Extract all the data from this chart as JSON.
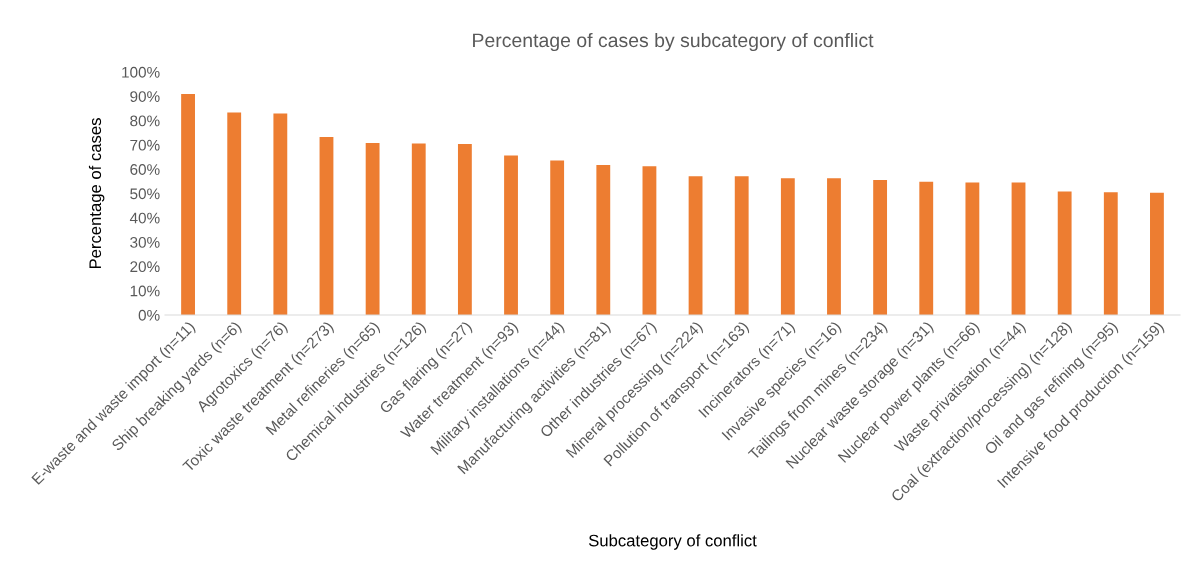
{
  "chart_data": {
    "type": "bar",
    "title": "Percentage of cases by subcategory of conflict",
    "xlabel": "Subcategory of conflict",
    "ylabel": "Percentage of cases",
    "categories": [
      "E-waste and waste import (n=11)",
      "Ship breaking yards (n=6)",
      "Agrotoxics (n=76)",
      "Toxic waste treatment (n=273)",
      "Metal refineries (n=65)",
      "Chemical industries (n=126)",
      "Gas flaring (n=27)",
      "Water treatment (n=93)",
      "Military installations (n=44)",
      "Manufacturing activities (n=81)",
      "Other industries (n=67)",
      "Mineral processing (n=224)",
      "Pollution of transport (n=163)",
      "Incinerators (n=71)",
      "Invasive species (n=16)",
      "Tailings from mines (n=234)",
      "Nuclear waste storage (n=31)",
      "Nuclear power plants (n=66)",
      "Waste privatisation (n=44)",
      "Coal (extraction/processing) (n=128)",
      "Oil and gas refining (n=95)",
      "Intensive food production (n=159)"
    ],
    "values": [
      90.9,
      83.3,
      82.9,
      73.3,
      70.8,
      70.6,
      70.4,
      65.6,
      63.6,
      61.7,
      61.2,
      57.1,
      57.1,
      56.3,
      56.3,
      55.6,
      54.8,
      54.5,
      54.5,
      50.8,
      50.5,
      50.3
    ],
    "color": "#ed7d31",
    "ylim": [
      0,
      100
    ],
    "yticks": [
      {
        "value": 0,
        "label": "0%"
      },
      {
        "value": 10,
        "label": "10%"
      },
      {
        "value": 20,
        "label": "20%"
      },
      {
        "value": 30,
        "label": "30%"
      },
      {
        "value": 40,
        "label": "40%"
      },
      {
        "value": 50,
        "label": "50%"
      },
      {
        "value": 60,
        "label": "60%"
      },
      {
        "value": 70,
        "label": "70%"
      },
      {
        "value": 80,
        "label": "80%"
      },
      {
        "value": 90,
        "label": "90%"
      },
      {
        "value": 100,
        "label": "100%"
      }
    ],
    "grid": false
  }
}
